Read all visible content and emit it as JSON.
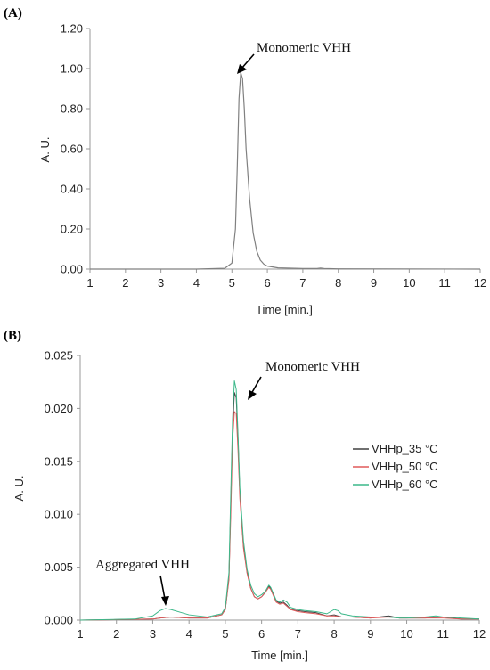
{
  "chart_data": [
    {
      "panel": "(A)",
      "type": "line",
      "xlabel": "Time [min.]",
      "ylabel": "A. U.",
      "xlim": [
        1,
        12
      ],
      "ylim": [
        0,
        1.2
      ],
      "xticks": [
        1,
        2,
        3,
        4,
        5,
        6,
        7,
        8,
        9,
        10,
        11,
        12
      ],
      "yticks": [
        "0.00",
        "0.20",
        "0.40",
        "0.60",
        "0.80",
        "1.00",
        "1.20"
      ],
      "grid": false,
      "annotations": [
        {
          "text": "Monomeric VHH",
          "x": 5.55,
          "y": 0.97
        }
      ],
      "series": [
        {
          "color": "#808080",
          "x": [
            1.0,
            4.0,
            4.8,
            5.0,
            5.1,
            5.15,
            5.2,
            5.25,
            5.3,
            5.35,
            5.4,
            5.5,
            5.6,
            5.7,
            5.8,
            5.9,
            6.0,
            6.3,
            7.0,
            7.4,
            7.5,
            7.6,
            8.0,
            12.0
          ],
          "y": [
            0.0,
            0.0,
            0.004,
            0.03,
            0.2,
            0.5,
            0.85,
            0.98,
            0.95,
            0.8,
            0.6,
            0.35,
            0.18,
            0.09,
            0.045,
            0.025,
            0.015,
            0.006,
            0.003,
            0.003,
            0.005,
            0.003,
            0.001,
            0.0
          ]
        }
      ]
    },
    {
      "panel": "(B)",
      "type": "line",
      "xlabel": "Time [min.]",
      "ylabel": "A. U.",
      "xlim": [
        1,
        12
      ],
      "ylim": [
        0,
        0.025
      ],
      "xticks": [
        1,
        2,
        3,
        4,
        5,
        6,
        7,
        8,
        9,
        10,
        11,
        12
      ],
      "yticks": [
        "0.000",
        "0.005",
        "0.010",
        "0.015",
        "0.020",
        "0.025"
      ],
      "grid": false,
      "legend_position": "right",
      "annotations": [
        {
          "text": "Monomeric VHH",
          "x": 5.5,
          "y": 0.0205
        },
        {
          "text": "Aggregated VHH",
          "x": 3.35,
          "y": 0.0015
        }
      ],
      "series": [
        {
          "name": "VHHp_35 °C",
          "color": "#404040",
          "x": [
            1.0,
            3.0,
            3.2,
            3.5,
            4.0,
            4.5,
            4.9,
            5.0,
            5.1,
            5.15,
            5.2,
            5.25,
            5.3,
            5.35,
            5.4,
            5.5,
            5.6,
            5.7,
            5.8,
            5.9,
            6.0,
            6.1,
            6.2,
            6.25,
            6.3,
            6.4,
            6.5,
            6.6,
            6.7,
            6.8,
            7.0,
            7.2,
            7.5,
            7.8,
            8.0,
            8.2,
            8.5,
            9.0,
            9.5,
            9.8,
            10.0,
            10.5,
            11.0,
            11.5,
            12.0
          ],
          "y": [
            0.0,
            0.0001,
            0.0002,
            0.0003,
            0.0002,
            0.0002,
            0.0005,
            0.001,
            0.004,
            0.011,
            0.018,
            0.0215,
            0.021,
            0.017,
            0.012,
            0.007,
            0.0045,
            0.003,
            0.0022,
            0.002,
            0.0022,
            0.0026,
            0.0032,
            0.003,
            0.0026,
            0.0018,
            0.0016,
            0.0017,
            0.0014,
            0.001,
            0.0009,
            0.0008,
            0.0007,
            0.0004,
            0.0005,
            0.0003,
            0.0003,
            0.0002,
            0.0004,
            0.0002,
            0.0002,
            0.0002,
            0.0003,
            0.0001,
            0.0001
          ]
        },
        {
          "name": "VHHp_50 °C",
          "color": "#e05a5a",
          "x": [
            1.0,
            3.0,
            3.2,
            3.5,
            4.0,
            4.5,
            4.9,
            5.0,
            5.1,
            5.15,
            5.2,
            5.25,
            5.3,
            5.35,
            5.4,
            5.5,
            5.6,
            5.7,
            5.8,
            5.9,
            6.0,
            6.1,
            6.2,
            6.25,
            6.3,
            6.4,
            6.5,
            6.6,
            6.7,
            6.8,
            7.0,
            7.2,
            7.5,
            7.8,
            8.0,
            8.2,
            8.5,
            9.0,
            9.5,
            9.8,
            10.0,
            10.5,
            11.0,
            11.5,
            12.0
          ],
          "y": [
            0.0,
            0.0001,
            0.0002,
            0.0003,
            0.0002,
            0.0002,
            0.0005,
            0.001,
            0.0038,
            0.01,
            0.017,
            0.0197,
            0.0195,
            0.016,
            0.0115,
            0.0068,
            0.0044,
            0.003,
            0.0022,
            0.002,
            0.0022,
            0.0026,
            0.0031,
            0.0029,
            0.0025,
            0.0017,
            0.0015,
            0.0016,
            0.0013,
            0.001,
            0.0008,
            0.0007,
            0.0006,
            0.0004,
            0.0004,
            0.0003,
            0.0003,
            0.0002,
            0.0003,
            0.0002,
            0.0002,
            0.0002,
            0.0002,
            0.0001,
            0.0001
          ]
        },
        {
          "name": "VHHp_60 °C",
          "color": "#3cb88a",
          "x": [
            1.0,
            2.5,
            3.0,
            3.2,
            3.35,
            3.5,
            3.8,
            4.0,
            4.5,
            4.9,
            5.0,
            5.1,
            5.15,
            5.2,
            5.25,
            5.3,
            5.35,
            5.4,
            5.5,
            5.6,
            5.7,
            5.8,
            5.9,
            6.0,
            6.1,
            6.2,
            6.25,
            6.3,
            6.4,
            6.5,
            6.6,
            6.7,
            6.8,
            7.0,
            7.2,
            7.5,
            7.8,
            8.0,
            8.1,
            8.2,
            8.5,
            9.0,
            9.5,
            9.8,
            10.0,
            10.5,
            10.8,
            11.0,
            11.5,
            12.0
          ],
          "y": [
            0.0,
            0.0001,
            0.0004,
            0.0009,
            0.0011,
            0.001,
            0.0007,
            0.0005,
            0.0003,
            0.0006,
            0.0012,
            0.0045,
            0.012,
            0.019,
            0.0226,
            0.0218,
            0.0175,
            0.0125,
            0.0075,
            0.0048,
            0.0033,
            0.0025,
            0.0022,
            0.0024,
            0.0027,
            0.0033,
            0.0031,
            0.0027,
            0.0019,
            0.0017,
            0.0019,
            0.0017,
            0.0012,
            0.001,
            0.0009,
            0.0008,
            0.0006,
            0.001,
            0.0009,
            0.0006,
            0.0004,
            0.0003,
            0.0003,
            0.0002,
            0.0002,
            0.0003,
            0.0004,
            0.0003,
            0.0002,
            0.0001
          ]
        }
      ]
    }
  ]
}
